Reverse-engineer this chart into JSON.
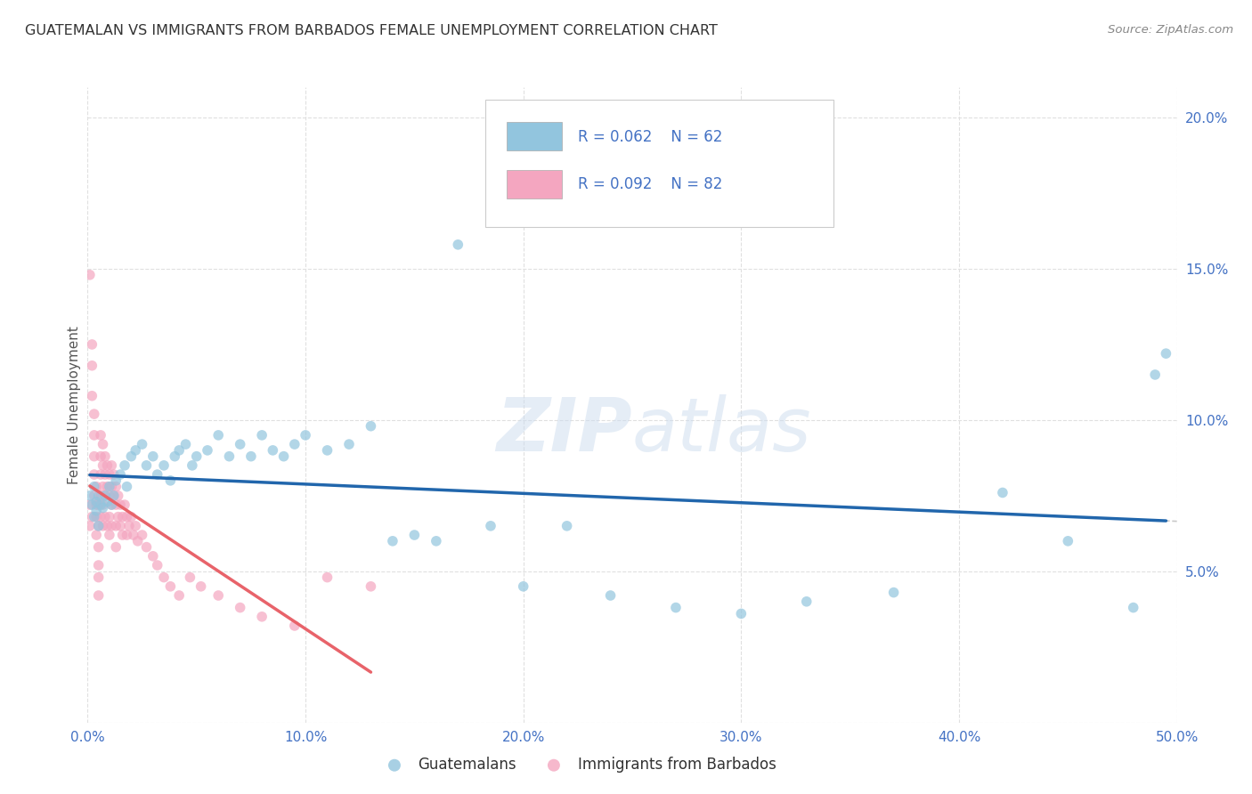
{
  "title": "GUATEMALAN VS IMMIGRANTS FROM BARBADOS FEMALE UNEMPLOYMENT CORRELATION CHART",
  "source": "Source: ZipAtlas.com",
  "ylabel": "Female Unemployment",
  "xlim": [
    0.0,
    0.5
  ],
  "ylim": [
    0.0,
    0.21
  ],
  "xticks": [
    0.0,
    0.1,
    0.2,
    0.3,
    0.4,
    0.5
  ],
  "xticklabels": [
    "0.0%",
    "10.0%",
    "20.0%",
    "30.0%",
    "40.0%",
    "50.0%"
  ],
  "yticks": [
    0.0,
    0.05,
    0.1,
    0.15,
    0.2
  ],
  "yticklabels": [
    "",
    "5.0%",
    "10.0%",
    "15.0%",
    "20.0%"
  ],
  "blue_color": "#92c5de",
  "pink_color": "#f4a6c0",
  "blue_line_color": "#2166ac",
  "pink_line_color": "#e8636a",
  "tick_color": "#4472c4",
  "scatter_alpha": 0.7,
  "marker_size": 70,
  "blue_x": [
    0.001,
    0.002,
    0.003,
    0.003,
    0.004,
    0.004,
    0.005,
    0.005,
    0.006,
    0.007,
    0.008,
    0.009,
    0.01,
    0.011,
    0.012,
    0.013,
    0.015,
    0.017,
    0.018,
    0.02,
    0.022,
    0.025,
    0.027,
    0.03,
    0.032,
    0.035,
    0.038,
    0.04,
    0.042,
    0.045,
    0.048,
    0.05,
    0.055,
    0.06,
    0.065,
    0.07,
    0.075,
    0.08,
    0.085,
    0.09,
    0.095,
    0.1,
    0.11,
    0.12,
    0.13,
    0.14,
    0.15,
    0.16,
    0.17,
    0.185,
    0.2,
    0.22,
    0.24,
    0.27,
    0.3,
    0.33,
    0.37,
    0.42,
    0.45,
    0.48,
    0.49,
    0.495
  ],
  "blue_y": [
    0.075,
    0.072,
    0.078,
    0.068,
    0.073,
    0.07,
    0.075,
    0.065,
    0.072,
    0.071,
    0.075,
    0.073,
    0.078,
    0.072,
    0.075,
    0.08,
    0.082,
    0.085,
    0.078,
    0.088,
    0.09,
    0.092,
    0.085,
    0.088,
    0.082,
    0.085,
    0.08,
    0.088,
    0.09,
    0.092,
    0.085,
    0.088,
    0.09,
    0.095,
    0.088,
    0.092,
    0.088,
    0.095,
    0.09,
    0.088,
    0.092,
    0.095,
    0.09,
    0.092,
    0.098,
    0.06,
    0.062,
    0.06,
    0.158,
    0.065,
    0.045,
    0.065,
    0.042,
    0.038,
    0.036,
    0.04,
    0.043,
    0.076,
    0.06,
    0.038,
    0.115,
    0.122
  ],
  "pink_x": [
    0.001,
    0.001,
    0.001,
    0.002,
    0.002,
    0.002,
    0.002,
    0.003,
    0.003,
    0.003,
    0.003,
    0.003,
    0.004,
    0.004,
    0.004,
    0.004,
    0.005,
    0.005,
    0.005,
    0.005,
    0.005,
    0.005,
    0.006,
    0.006,
    0.006,
    0.006,
    0.006,
    0.007,
    0.007,
    0.007,
    0.007,
    0.007,
    0.008,
    0.008,
    0.008,
    0.008,
    0.009,
    0.009,
    0.009,
    0.01,
    0.01,
    0.01,
    0.01,
    0.011,
    0.011,
    0.011,
    0.011,
    0.012,
    0.012,
    0.013,
    0.013,
    0.013,
    0.013,
    0.014,
    0.014,
    0.015,
    0.015,
    0.016,
    0.016,
    0.017,
    0.018,
    0.018,
    0.019,
    0.02,
    0.021,
    0.022,
    0.023,
    0.025,
    0.027,
    0.03,
    0.032,
    0.035,
    0.038,
    0.042,
    0.047,
    0.052,
    0.06,
    0.07,
    0.08,
    0.095,
    0.11,
    0.13
  ],
  "pink_y": [
    0.148,
    0.072,
    0.065,
    0.125,
    0.118,
    0.108,
    0.068,
    0.102,
    0.095,
    0.088,
    0.082,
    0.075,
    0.078,
    0.072,
    0.068,
    0.062,
    0.072,
    0.065,
    0.058,
    0.052,
    0.048,
    0.042,
    0.095,
    0.088,
    0.082,
    0.075,
    0.068,
    0.092,
    0.085,
    0.078,
    0.072,
    0.065,
    0.088,
    0.082,
    0.075,
    0.068,
    0.085,
    0.078,
    0.065,
    0.082,
    0.075,
    0.068,
    0.062,
    0.085,
    0.078,
    0.072,
    0.065,
    0.082,
    0.075,
    0.078,
    0.072,
    0.065,
    0.058,
    0.075,
    0.068,
    0.072,
    0.065,
    0.068,
    0.062,
    0.072,
    0.068,
    0.062,
    0.065,
    0.068,
    0.062,
    0.065,
    0.06,
    0.062,
    0.058,
    0.055,
    0.052,
    0.048,
    0.045,
    0.042,
    0.048,
    0.045,
    0.042,
    0.038,
    0.035,
    0.032,
    0.048,
    0.045
  ],
  "watermark_zip": "ZIP",
  "watermark_atlas": "atlas",
  "background_color": "#ffffff",
  "grid_color": "#e0e0e0"
}
